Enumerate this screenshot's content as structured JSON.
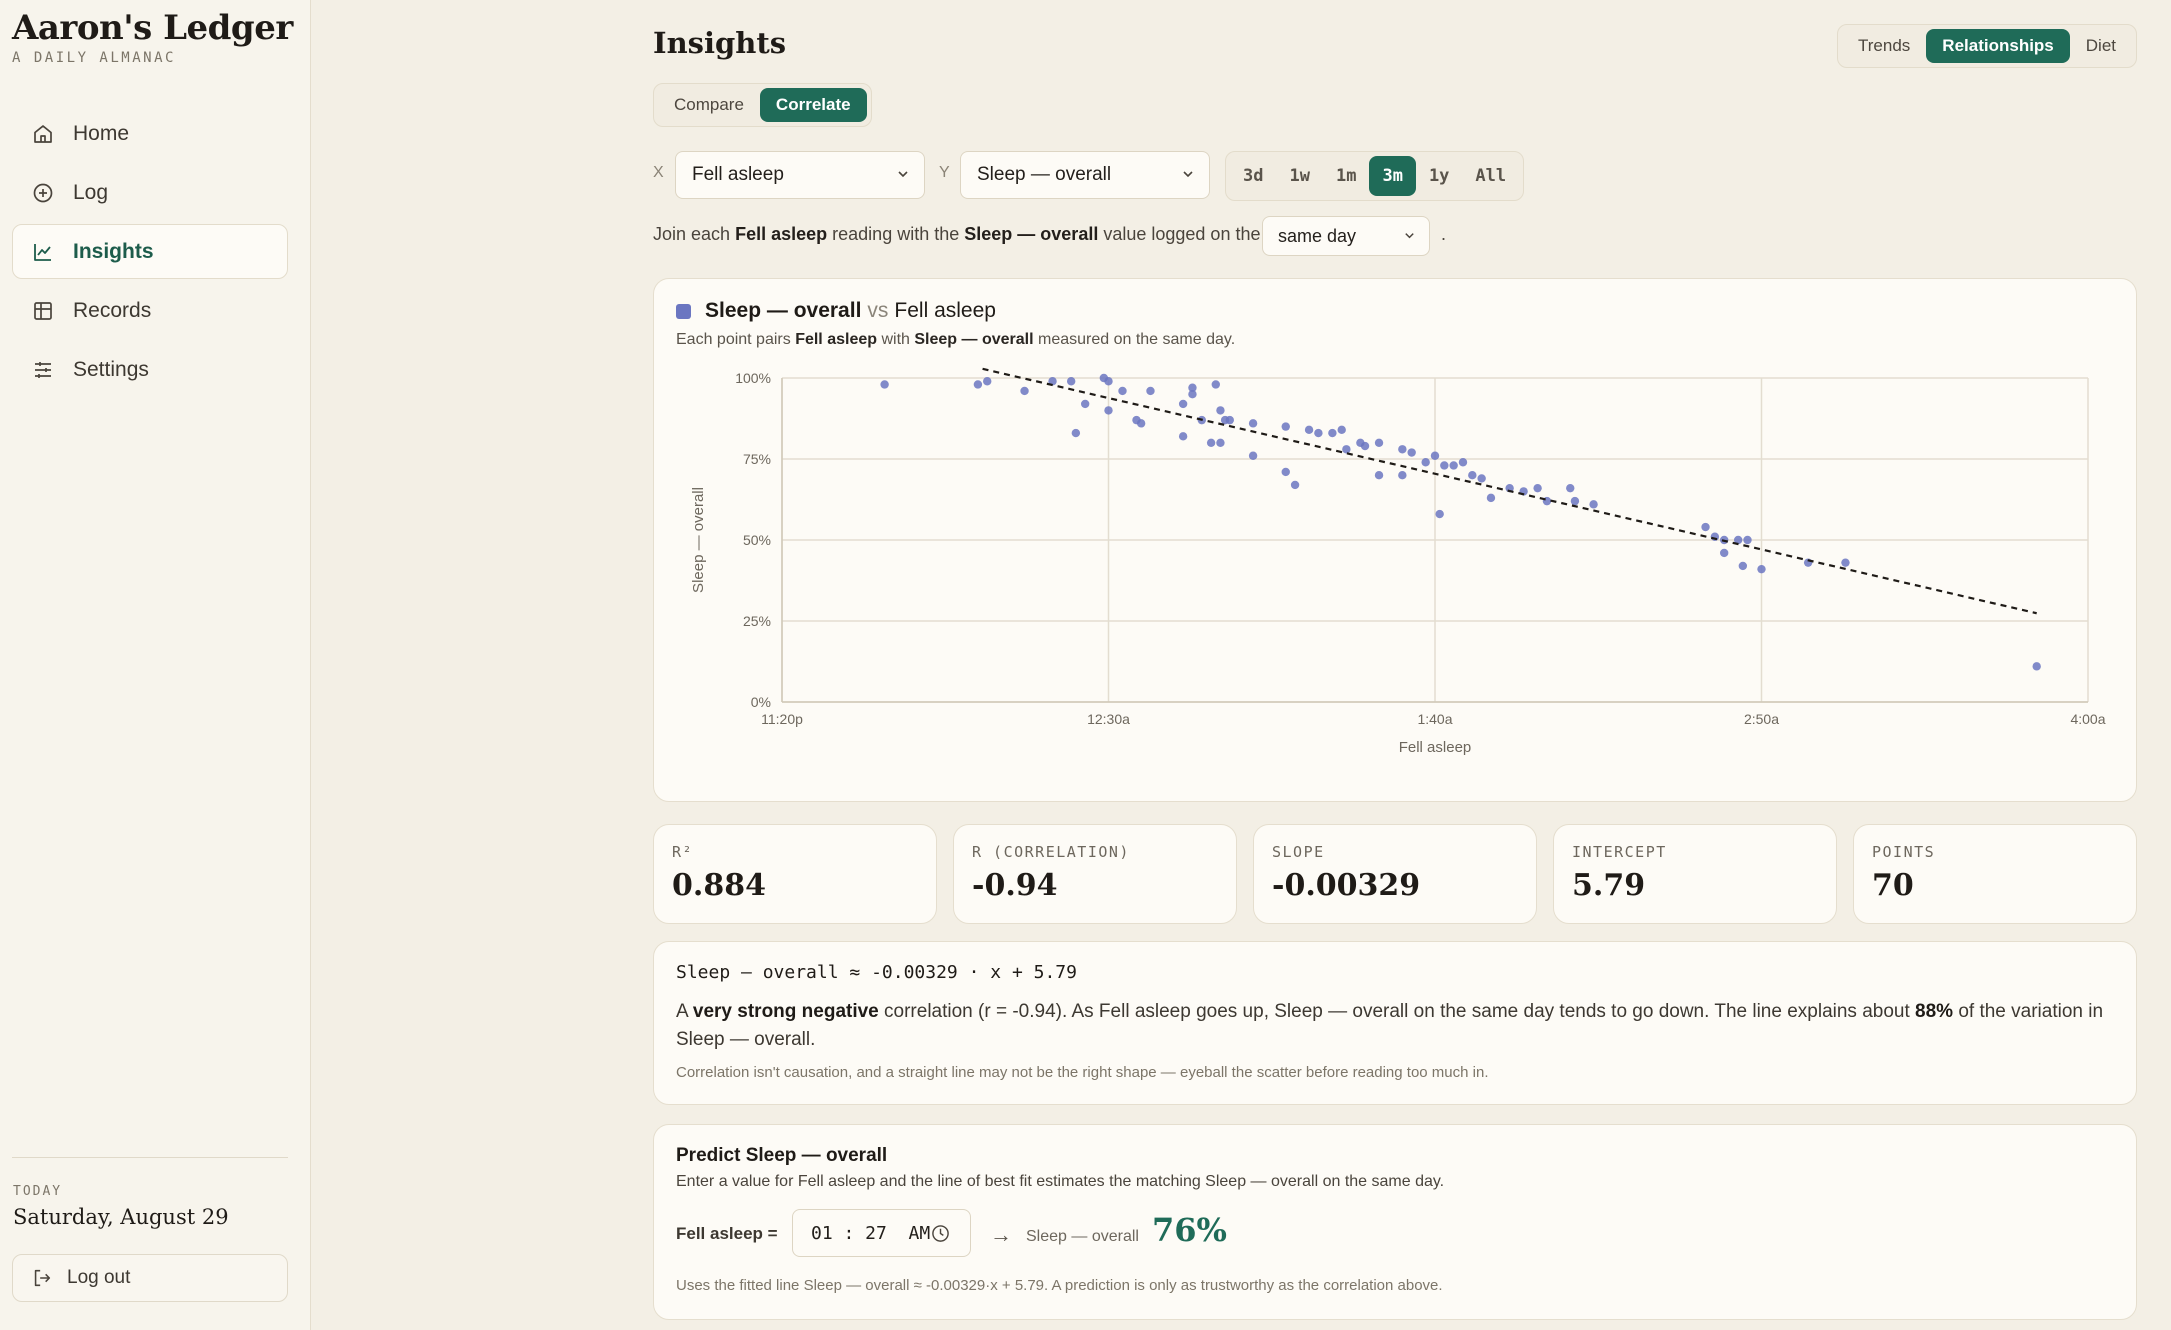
{
  "app": {
    "title": "Aaron's Ledger",
    "subtitle": "A DAILY ALMANAC"
  },
  "sidebar": {
    "items": [
      {
        "label": "Home",
        "icon": "home-icon"
      },
      {
        "label": "Log",
        "icon": "plus-circle-icon"
      },
      {
        "label": "Insights",
        "icon": "line-chart-icon",
        "active": true
      },
      {
        "label": "Records",
        "icon": "table-icon"
      },
      {
        "label": "Settings",
        "icon": "sliders-icon"
      }
    ],
    "today_label": "TODAY",
    "today_date": "Saturday, August 29",
    "logout_label": "Log out"
  },
  "header": {
    "title": "Insights",
    "top_tabs": [
      "Trends",
      "Relationships",
      "Diet"
    ],
    "top_active": "Relationships",
    "mode_tabs": [
      "Compare",
      "Correlate"
    ],
    "mode_active": "Correlate"
  },
  "controls": {
    "x_tag": "X",
    "x_value": "Fell asleep",
    "y_tag": "Y",
    "y_value": "Sleep — overall",
    "ranges": [
      "3d",
      "1w",
      "1m",
      "3m",
      "1y",
      "All"
    ],
    "range_active": "3m",
    "join_prefix": "Join each",
    "join_x": "Fell asleep",
    "join_mid": "reading with the",
    "join_y": "Sleep — overall",
    "join_suffix": "value logged on the",
    "join_select": "same day",
    "join_end": "."
  },
  "chart": {
    "legend_y": "Sleep — overall",
    "legend_vs": "vs",
    "legend_x": "Fell asleep",
    "sub_prefix": "Each point pairs",
    "sub_x": "Fell asleep",
    "sub_mid": "with",
    "sub_y": "Sleep — overall",
    "sub_suffix": "measured on the same day."
  },
  "chart_data": {
    "type": "scatter",
    "xlabel": "Fell asleep",
    "ylabel": "Sleep — overall",
    "x_unit": "minutes after 11:20 PM",
    "xlim": [
      0,
      280
    ],
    "ylim": [
      0,
      100
    ],
    "x_ticks": [
      {
        "value": 0,
        "label": "11:20p"
      },
      {
        "value": 70,
        "label": "12:30a"
      },
      {
        "value": 140,
        "label": "1:40a"
      },
      {
        "value": 210,
        "label": "2:50a"
      },
      {
        "value": 280,
        "label": "4:00a"
      }
    ],
    "y_ticks": [
      {
        "value": 0,
        "label": "0%"
      },
      {
        "value": 25,
        "label": "25%"
      },
      {
        "value": 50,
        "label": "50%"
      },
      {
        "value": 75,
        "label": "75%"
      },
      {
        "value": 100,
        "label": "100%"
      }
    ],
    "grid": true,
    "series": [
      {
        "color": "#6b76c1",
        "points": [
          [
            22,
            98
          ],
          [
            42,
            98
          ],
          [
            44,
            99
          ],
          [
            52,
            96
          ],
          [
            58,
            99
          ],
          [
            62,
            99
          ],
          [
            63,
            83
          ],
          [
            65,
            92
          ],
          [
            69,
            100
          ],
          [
            70,
            99
          ],
          [
            70,
            90
          ],
          [
            73,
            96
          ],
          [
            76,
            87
          ],
          [
            77,
            86
          ],
          [
            79,
            96
          ],
          [
            86,
            92
          ],
          [
            86,
            82
          ],
          [
            88,
            95
          ],
          [
            88,
            97
          ],
          [
            90,
            87
          ],
          [
            92,
            80
          ],
          [
            93,
            98
          ],
          [
            94,
            90
          ],
          [
            94,
            80
          ],
          [
            95,
            87
          ],
          [
            96,
            87
          ],
          [
            101,
            76
          ],
          [
            101,
            86
          ],
          [
            108,
            71
          ],
          [
            108,
            85
          ],
          [
            110,
            67
          ],
          [
            113,
            84
          ],
          [
            115,
            83
          ],
          [
            118,
            83
          ],
          [
            120,
            84
          ],
          [
            121,
            78
          ],
          [
            124,
            80
          ],
          [
            125,
            79
          ],
          [
            128,
            70
          ],
          [
            133,
            78
          ],
          [
            135,
            77
          ],
          [
            138,
            74
          ],
          [
            140,
            76
          ],
          [
            141,
            58
          ],
          [
            142,
            73
          ],
          [
            144,
            73
          ],
          [
            146,
            74
          ],
          [
            148,
            70
          ],
          [
            150,
            69
          ],
          [
            152,
            63
          ],
          [
            156,
            66
          ],
          [
            159,
            65
          ],
          [
            162,
            66
          ],
          [
            164,
            62
          ],
          [
            169,
            66
          ],
          [
            174,
            61
          ],
          [
            198,
            54
          ],
          [
            200,
            51
          ],
          [
            202,
            50
          ],
          [
            202,
            46
          ],
          [
            205,
            50
          ],
          [
            206,
            42
          ],
          [
            207,
            50
          ],
          [
            210,
            41
          ],
          [
            220,
            43
          ],
          [
            228,
            43
          ],
          [
            269,
            11
          ],
          [
            133,
            70
          ],
          [
            128,
            80
          ],
          [
            170,
            62
          ]
        ]
      }
    ],
    "fit_line": {
      "slope": -0.00329,
      "intercept": 5.79,
      "x_range": [
        43,
        269
      ]
    }
  },
  "stats": [
    {
      "label": "R²",
      "value": "0.884"
    },
    {
      "label": "R (CORRELATION)",
      "value": "-0.94"
    },
    {
      "label": "SLOPE",
      "value": "-0.00329"
    },
    {
      "label": "INTERCEPT",
      "value": "5.79"
    },
    {
      "label": "POINTS",
      "value": "70"
    }
  ],
  "explain": {
    "formula": "Sleep — overall ≈ -0.00329 · x + 5.79",
    "t1": "A ",
    "strength": "very strong negative",
    "t2": " correlation (r = -0.94). As Fell asleep goes up, Sleep — overall on the same day tends to go down. The line explains about ",
    "pct": "88%",
    "t3": " of the variation in Sleep — overall.",
    "caveat": "Correlation isn't causation, and a straight line may not be the right shape — eyeball the scatter before reading too much in."
  },
  "predict": {
    "title": "Predict Sleep — overall",
    "subtitle": "Enter a value for Fell asleep and the line of best fit estimates the matching Sleep — overall on the same day.",
    "input_label": "Fell asleep =",
    "input_value": "01 : 27  AM",
    "arrow": "→",
    "output_label": "Sleep — overall",
    "output_value": "76%",
    "footnote": "Uses the fitted line Sleep — overall ≈ -0.00329·x + 5.79. A prediction is only as trustworthy as the correlation above."
  }
}
